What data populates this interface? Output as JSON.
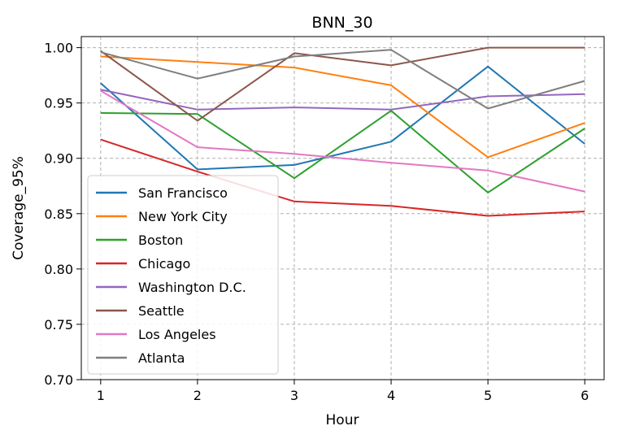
{
  "chart_data": {
    "type": "line",
    "title": "BNN_30",
    "xlabel": "Hour",
    "ylabel": "Coverage_95%",
    "x": [
      1,
      2,
      3,
      4,
      5,
      6
    ],
    "xticks": [
      "1",
      "2",
      "3",
      "4",
      "5",
      "6"
    ],
    "xlim": [
      0.8,
      6.2
    ],
    "ylim": [
      0.7,
      1.01
    ],
    "yticks": [
      "0.70",
      "0.75",
      "0.80",
      "0.85",
      "0.90",
      "0.95",
      "1.00"
    ],
    "grid": true,
    "legend_position": "lower-left",
    "series": [
      {
        "name": "San Francisco",
        "color": "#1f77b4",
        "values": [
          0.968,
          0.89,
          0.894,
          0.915,
          0.983,
          0.913
        ]
      },
      {
        "name": "New York City",
        "color": "#ff7f0e",
        "values": [
          0.992,
          0.987,
          0.982,
          0.966,
          0.901,
          0.932
        ]
      },
      {
        "name": "Boston",
        "color": "#2ca02c",
        "values": [
          0.941,
          0.94,
          0.882,
          0.943,
          0.869,
          0.927
        ]
      },
      {
        "name": "Chicago",
        "color": "#d62728",
        "values": [
          0.917,
          0.888,
          0.861,
          0.857,
          0.848,
          0.852
        ]
      },
      {
        "name": "Washington D.C.",
        "color": "#9467bd",
        "values": [
          0.962,
          0.944,
          0.946,
          0.944,
          0.956,
          0.958
        ]
      },
      {
        "name": "Seattle",
        "color": "#8c564b",
        "values": [
          0.997,
          0.934,
          0.995,
          0.984,
          1.0,
          1.0
        ]
      },
      {
        "name": "Los Angeles",
        "color": "#e377c2",
        "values": [
          0.961,
          0.91,
          0.904,
          0.896,
          0.889,
          0.87
        ]
      },
      {
        "name": "Atlanta",
        "color": "#7f7f7f",
        "values": [
          0.996,
          0.972,
          0.992,
          0.998,
          0.945,
          0.97
        ]
      }
    ]
  }
}
